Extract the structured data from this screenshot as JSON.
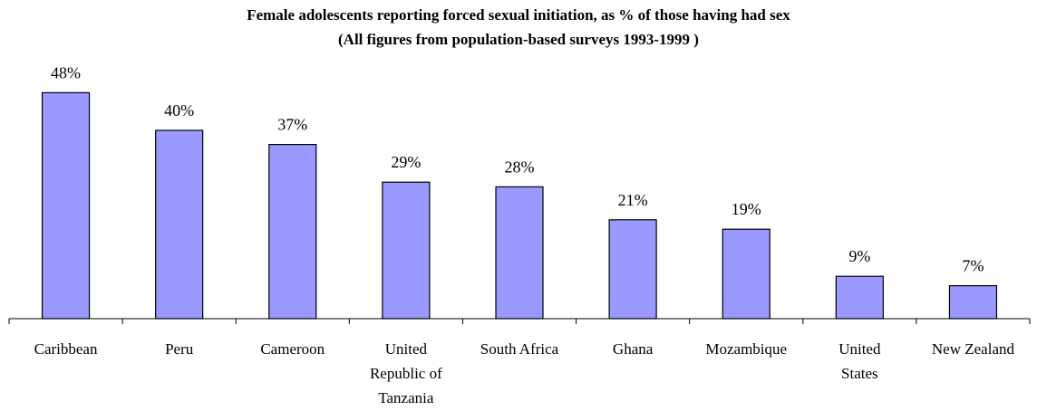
{
  "chart_data": {
    "type": "bar",
    "title": "Female adolescents reporting forced sexual initiation, as % of those having had sex",
    "subtitle": "(All figures from  population-based surveys 1993-1999 )",
    "categories": [
      "Caribbean",
      "Peru",
      "Cameroon",
      "United\nRepublic of\nTanzania",
      "South Africa",
      "Ghana",
      "Mozambique",
      "United\nStates",
      "New Zealand"
    ],
    "values": [
      48,
      40,
      37,
      29,
      28,
      21,
      19,
      9,
      7
    ],
    "value_labels": [
      "48%",
      "40%",
      "37%",
      "29%",
      "28%",
      "21%",
      "19%",
      "9%",
      "7%"
    ],
    "color": "#9999ff"
  }
}
